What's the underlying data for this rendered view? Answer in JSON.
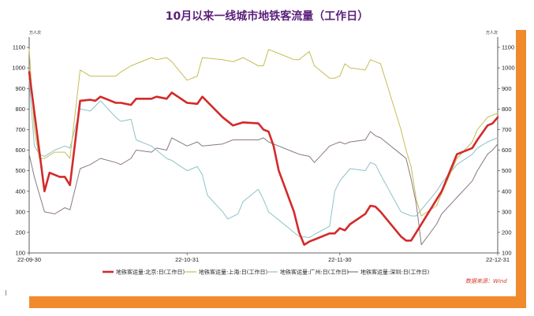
{
  "chart_data": {
    "type": "line",
    "title": "10月以来一线城市地铁客流量（工作日）",
    "unit_left": "万人次",
    "unit_right": "万人次",
    "ylim": [
      100,
      1150
    ],
    "yticks": [
      100,
      200,
      300,
      400,
      500,
      600,
      700,
      800,
      900,
      1000,
      1100
    ],
    "xlim": [
      "2022-09-30",
      "2022-12-31"
    ],
    "xticks": [
      {
        "date": "2022-09-30",
        "label": "22-09-30"
      },
      {
        "date": "2022-10-31",
        "label": "22-10-31"
      },
      {
        "date": "2022-11-30",
        "label": "22-11-30"
      },
      {
        "date": "2022-12-31",
        "label": "22-12-31"
      }
    ],
    "grid": false,
    "legend_position": "bottom",
    "source": "数据来源：Wind",
    "series": [
      {
        "name": "地铁客运量:北京:日(工作日)",
        "color": "#d32a2a",
        "width": 2.6,
        "points": [
          [
            "2022-09-30",
            980
          ],
          [
            "2022-10-03",
            400
          ],
          [
            "2022-10-04",
            490
          ],
          [
            "2022-10-06",
            470
          ],
          [
            "2022-10-07",
            470
          ],
          [
            "2022-10-08",
            430
          ],
          [
            "2022-10-10",
            840
          ],
          [
            "2022-10-12",
            845
          ],
          [
            "2022-10-13",
            840
          ],
          [
            "2022-10-14",
            860
          ],
          [
            "2022-10-17",
            830
          ],
          [
            "2022-10-18",
            830
          ],
          [
            "2022-10-20",
            820
          ],
          [
            "2022-10-21",
            850
          ],
          [
            "2022-10-24",
            850
          ],
          [
            "2022-10-25",
            860
          ],
          [
            "2022-10-27",
            850
          ],
          [
            "2022-10-28",
            880
          ],
          [
            "2022-10-31",
            830
          ],
          [
            "2022-11-02",
            825
          ],
          [
            "2022-11-03",
            860
          ],
          [
            "2022-11-07",
            760
          ],
          [
            "2022-11-09",
            720
          ],
          [
            "2022-11-11",
            735
          ],
          [
            "2022-11-14",
            730
          ],
          [
            "2022-11-15",
            700
          ],
          [
            "2022-11-16",
            690
          ],
          [
            "2022-11-17",
            620
          ],
          [
            "2022-11-18",
            500
          ],
          [
            "2022-11-21",
            300
          ],
          [
            "2022-11-22",
            200
          ],
          [
            "2022-11-23",
            140
          ],
          [
            "2022-11-24",
            155
          ],
          [
            "2022-11-25",
            165
          ],
          [
            "2022-11-28",
            195
          ],
          [
            "2022-11-29",
            195
          ],
          [
            "2022-11-30",
            220
          ],
          [
            "2022-12-01",
            210
          ],
          [
            "2022-12-02",
            240
          ],
          [
            "2022-12-05",
            290
          ],
          [
            "2022-12-06",
            330
          ],
          [
            "2022-12-07",
            325
          ],
          [
            "2022-12-08",
            300
          ],
          [
            "2022-12-12",
            180
          ],
          [
            "2022-12-13",
            160
          ],
          [
            "2022-12-14",
            160
          ],
          [
            "2022-12-15",
            200
          ],
          [
            "2022-12-19",
            360
          ],
          [
            "2022-12-20",
            400
          ],
          [
            "2022-12-23",
            580
          ],
          [
            "2022-12-26",
            610
          ],
          [
            "2022-12-27",
            650
          ],
          [
            "2022-12-29",
            720
          ],
          [
            "2022-12-30",
            730
          ],
          [
            "2022-12-31",
            760
          ]
        ]
      },
      {
        "name": "地铁客运量:上海:日(工作日)",
        "color": "#c5bd55",
        "width": 1,
        "points": [
          [
            "2022-09-30",
            1090
          ],
          [
            "2022-10-01",
            700
          ],
          [
            "2022-10-02",
            560
          ],
          [
            "2022-10-03",
            560
          ],
          [
            "2022-10-05",
            590
          ],
          [
            "2022-10-07",
            590
          ],
          [
            "2022-10-08",
            560
          ],
          [
            "2022-10-10",
            990
          ],
          [
            "2022-10-12",
            960
          ],
          [
            "2022-10-14",
            960
          ],
          [
            "2022-10-17",
            960
          ],
          [
            "2022-10-18",
            980
          ],
          [
            "2022-10-20",
            1010
          ],
          [
            "2022-10-21",
            1020
          ],
          [
            "2022-10-24",
            1050
          ],
          [
            "2022-10-25",
            1040
          ],
          [
            "2022-10-27",
            1050
          ],
          [
            "2022-10-28",
            1030
          ],
          [
            "2022-10-31",
            940
          ],
          [
            "2022-11-02",
            960
          ],
          [
            "2022-11-03",
            1050
          ],
          [
            "2022-11-07",
            1040
          ],
          [
            "2022-11-09",
            1030
          ],
          [
            "2022-11-11",
            1050
          ],
          [
            "2022-11-14",
            1010
          ],
          [
            "2022-11-15",
            1010
          ],
          [
            "2022-11-16",
            1090
          ],
          [
            "2022-11-18",
            1070
          ],
          [
            "2022-11-21",
            1040
          ],
          [
            "2022-11-22",
            1040
          ],
          [
            "2022-11-24",
            1080
          ],
          [
            "2022-11-25",
            1010
          ],
          [
            "2022-11-28",
            950
          ],
          [
            "2022-11-29",
            950
          ],
          [
            "2022-11-30",
            960
          ],
          [
            "2022-12-01",
            1020
          ],
          [
            "2022-12-02",
            1000
          ],
          [
            "2022-12-05",
            990
          ],
          [
            "2022-12-06",
            1040
          ],
          [
            "2022-12-07",
            1030
          ],
          [
            "2022-12-08",
            1020
          ],
          [
            "2022-12-12",
            700
          ],
          [
            "2022-12-13",
            600
          ],
          [
            "2022-12-14",
            520
          ],
          [
            "2022-12-15",
            360
          ],
          [
            "2022-12-16",
            280
          ],
          [
            "2022-12-19",
            330
          ],
          [
            "2022-12-20",
            390
          ],
          [
            "2022-12-23",
            560
          ],
          [
            "2022-12-26",
            640
          ],
          [
            "2022-12-27",
            700
          ],
          [
            "2022-12-29",
            760
          ],
          [
            "2022-12-30",
            770
          ],
          [
            "2022-12-31",
            780
          ]
        ]
      },
      {
        "name": "地铁客运量:广州:日(工作日)",
        "color": "#8fc2c6",
        "width": 1,
        "points": [
          [
            "2022-09-30",
            940
          ],
          [
            "2022-10-01",
            620
          ],
          [
            "2022-10-02",
            580
          ],
          [
            "2022-10-03",
            570
          ],
          [
            "2022-10-05",
            600
          ],
          [
            "2022-10-07",
            620
          ],
          [
            "2022-10-08",
            610
          ],
          [
            "2022-10-10",
            800
          ],
          [
            "2022-10-12",
            790
          ],
          [
            "2022-10-14",
            840
          ],
          [
            "2022-10-17",
            760
          ],
          [
            "2022-10-18",
            740
          ],
          [
            "2022-10-20",
            750
          ],
          [
            "2022-10-21",
            650
          ],
          [
            "2022-10-24",
            620
          ],
          [
            "2022-10-25",
            600
          ],
          [
            "2022-10-27",
            560
          ],
          [
            "2022-10-28",
            550
          ],
          [
            "2022-10-31",
            500
          ],
          [
            "2022-11-02",
            520
          ],
          [
            "2022-11-03",
            480
          ],
          [
            "2022-11-04",
            380
          ],
          [
            "2022-11-07",
            300
          ],
          [
            "2022-11-08",
            265
          ],
          [
            "2022-11-10",
            290
          ],
          [
            "2022-11-11",
            350
          ],
          [
            "2022-11-14",
            410
          ],
          [
            "2022-11-15",
            360
          ],
          [
            "2022-11-16",
            300
          ],
          [
            "2022-11-17",
            280
          ],
          [
            "2022-11-18",
            260
          ],
          [
            "2022-11-21",
            200
          ],
          [
            "2022-11-22",
            180
          ],
          [
            "2022-11-24",
            175
          ],
          [
            "2022-11-25",
            190
          ],
          [
            "2022-11-28",
            230
          ],
          [
            "2022-11-29",
            400
          ],
          [
            "2022-11-30",
            450
          ],
          [
            "2022-12-01",
            480
          ],
          [
            "2022-12-02",
            510
          ],
          [
            "2022-12-05",
            500
          ],
          [
            "2022-12-06",
            540
          ],
          [
            "2022-12-07",
            530
          ],
          [
            "2022-12-08",
            480
          ],
          [
            "2022-12-12",
            300
          ],
          [
            "2022-12-13",
            290
          ],
          [
            "2022-12-14",
            280
          ],
          [
            "2022-12-15",
            280
          ],
          [
            "2022-12-19",
            400
          ],
          [
            "2022-12-20",
            440
          ],
          [
            "2022-12-23",
            530
          ],
          [
            "2022-12-26",
            580
          ],
          [
            "2022-12-27",
            610
          ],
          [
            "2022-12-29",
            640
          ],
          [
            "2022-12-30",
            650
          ],
          [
            "2022-12-31",
            660
          ]
        ]
      },
      {
        "name": "地铁客运量:深圳:日(工作日)",
        "color": "#8a7884",
        "width": 1,
        "points": [
          [
            "2022-09-30",
            580
          ],
          [
            "2022-10-01",
            470
          ],
          [
            "2022-10-03",
            300
          ],
          [
            "2022-10-05",
            290
          ],
          [
            "2022-10-07",
            320
          ],
          [
            "2022-10-08",
            310
          ],
          [
            "2022-10-10",
            510
          ],
          [
            "2022-10-12",
            530
          ],
          [
            "2022-10-14",
            560
          ],
          [
            "2022-10-17",
            540
          ],
          [
            "2022-10-18",
            530
          ],
          [
            "2022-10-20",
            560
          ],
          [
            "2022-10-21",
            600
          ],
          [
            "2022-10-24",
            590
          ],
          [
            "2022-10-25",
            610
          ],
          [
            "2022-10-27",
            600
          ],
          [
            "2022-10-28",
            660
          ],
          [
            "2022-10-31",
            620
          ],
          [
            "2022-11-02",
            640
          ],
          [
            "2022-11-03",
            620
          ],
          [
            "2022-11-07",
            630
          ],
          [
            "2022-11-09",
            650
          ],
          [
            "2022-11-11",
            650
          ],
          [
            "2022-11-14",
            650
          ],
          [
            "2022-11-15",
            660
          ],
          [
            "2022-11-16",
            640
          ],
          [
            "2022-11-18",
            620
          ],
          [
            "2022-11-21",
            590
          ],
          [
            "2022-11-22",
            580
          ],
          [
            "2022-11-24",
            570
          ],
          [
            "2022-11-25",
            540
          ],
          [
            "2022-11-28",
            620
          ],
          [
            "2022-11-29",
            630
          ],
          [
            "2022-11-30",
            640
          ],
          [
            "2022-12-01",
            630
          ],
          [
            "2022-12-02",
            640
          ],
          [
            "2022-12-05",
            650
          ],
          [
            "2022-12-06",
            690
          ],
          [
            "2022-12-07",
            670
          ],
          [
            "2022-12-08",
            660
          ],
          [
            "2022-12-12",
            580
          ],
          [
            "2022-12-13",
            560
          ],
          [
            "2022-12-14",
            460
          ],
          [
            "2022-12-15",
            340
          ],
          [
            "2022-12-16",
            140
          ],
          [
            "2022-12-19",
            240
          ],
          [
            "2022-12-20",
            290
          ],
          [
            "2022-12-23",
            370
          ],
          [
            "2022-12-26",
            450
          ],
          [
            "2022-12-27",
            500
          ],
          [
            "2022-12-29",
            580
          ],
          [
            "2022-12-30",
            600
          ],
          [
            "2022-12-31",
            630
          ]
        ]
      }
    ]
  }
}
